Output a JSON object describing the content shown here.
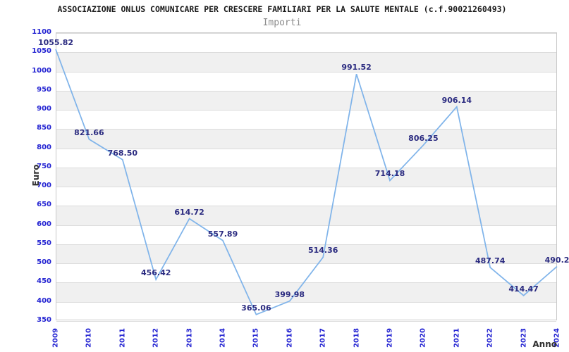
{
  "chart": {
    "title": "ASSOCIAZIONE ONLUS COMUNICARE PER CRESCERE FAMILIARI PER LA SALUTE MENTALE (c.f.90021260493)",
    "subtitle": "Importi",
    "y_axis_title": "Euro",
    "x_axis_title": "Anno"
  },
  "chart_data": {
    "type": "line",
    "title": "ASSOCIAZIONE ONLUS COMUNICARE PER CRESCERE FAMILIARI PER LA SALUTE MENTALE (c.f.90021260493)",
    "subtitle": "Importi",
    "xlabel": "Anno",
    "ylabel": "Euro",
    "categories": [
      "2009",
      "2010",
      "2011",
      "2012",
      "2013",
      "2014",
      "2015",
      "2016",
      "2017",
      "2018",
      "2019",
      "2020",
      "2021",
      "2022",
      "2023",
      "2024"
    ],
    "values": [
      1055.82,
      821.66,
      768.5,
      456.42,
      614.72,
      557.89,
      365.06,
      399.98,
      514.36,
      991.52,
      714.18,
      806.25,
      906.14,
      487.74,
      414.47,
      490.2
    ],
    "value_labels": [
      "1055.82",
      "821.66",
      "768.50",
      "456.42",
      "614.72",
      "557.89",
      "365.06",
      "399.98",
      "514.36",
      "991.52",
      "714.18",
      "806.25",
      "906.14",
      "487.74",
      "414.47",
      "490.2"
    ],
    "ylim": [
      350,
      1100
    ],
    "y_tick_step": 50,
    "grid": "horizontal",
    "alternating_bands": true,
    "legend_position": "none",
    "colors": {
      "line": "#80b4ea",
      "tick_label": "#2424d2",
      "data_label": "#2b2b80",
      "band_fill": "#f0f0f0",
      "gridline": "#dcdcdc",
      "plot_border": "#c9c9c9",
      "title": "#1a1a1a",
      "subtitle": "#8c8c8c",
      "axis_title": "#333333"
    }
  }
}
